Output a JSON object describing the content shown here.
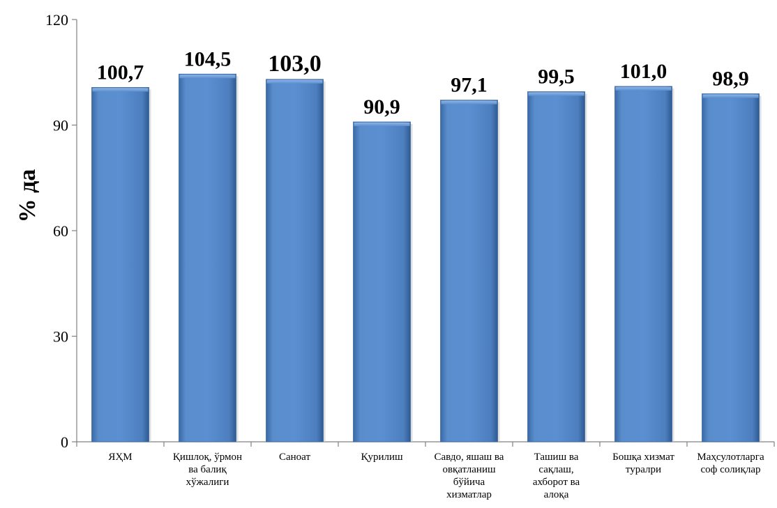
{
  "chart_data": {
    "type": "bar",
    "ylabel": "% да",
    "ylim": [
      0,
      120
    ],
    "yticks": [
      "0",
      "30",
      "60",
      "90",
      "120"
    ],
    "ytick_values": [
      0,
      30,
      60,
      90,
      120
    ],
    "categories": [
      [
        "ЯҲМ"
      ],
      [
        "Қишлоқ, ўрмон",
        "ва балиқ",
        "хўжалиги"
      ],
      [
        "Саноат"
      ],
      [
        "Қурилиш"
      ],
      [
        "Савдо, яшаш ва",
        "овқатланиш",
        "бўйича",
        "хизматлар"
      ],
      [
        "Ташиш ва",
        "сақлаш,",
        "ахборот ва",
        "алоқа"
      ],
      [
        "Бошқа хизмат",
        "туралри"
      ],
      [
        "Маҳсулотларга",
        "соф солиқлар"
      ]
    ],
    "values": [
      100.7,
      104.5,
      103.0,
      90.9,
      97.1,
      99.5,
      101.0,
      98.9
    ],
    "data_labels": [
      "100,7",
      "104,5",
      "103,0",
      "90,9",
      "97,1",
      "99,5",
      "101,0",
      "98,9"
    ],
    "bar_color": "#4f81bd",
    "grid": false,
    "legend": "none"
  }
}
